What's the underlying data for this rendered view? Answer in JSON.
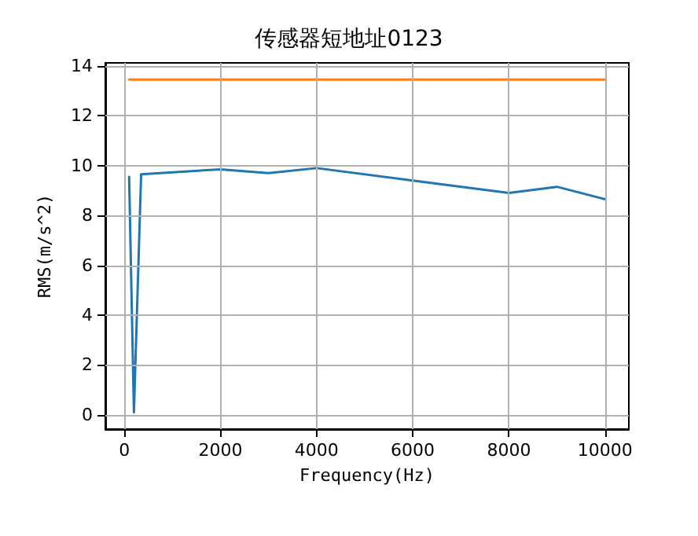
{
  "chart_data": {
    "type": "line",
    "title": "传感器短地址0123",
    "xlabel": "Frequency(Hz)",
    "ylabel": "RMS(m/s^2)",
    "xlim": [
      -395,
      10495
    ],
    "ylim": [
      -0.57,
      14.12
    ],
    "xticks": [
      0,
      2000,
      4000,
      6000,
      8000,
      10000
    ],
    "yticks": [
      0,
      2,
      4,
      6,
      8,
      10,
      12,
      14
    ],
    "grid": true,
    "series": [
      {
        "color": "#1f77b4",
        "x": [
          100,
          200,
          350,
          2000,
          3000,
          4000,
          6000,
          8000,
          9000,
          10000
        ],
        "values": [
          9.55,
          0.1,
          9.65,
          9.85,
          9.7,
          9.9,
          9.4,
          8.9,
          9.15,
          8.65
        ]
      },
      {
        "color": "#ff7f0e",
        "x": [
          100,
          10000
        ],
        "values": [
          13.45,
          13.45
        ]
      }
    ]
  }
}
